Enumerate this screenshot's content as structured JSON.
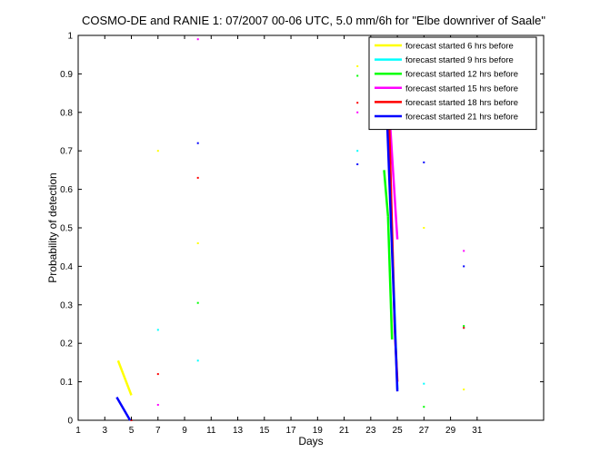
{
  "chart_data": {
    "type": "line",
    "title": "COSMO-DE and RANIE 1: 07/2007 00-06 UTC, 5.0 mm/6h for \"Elbe downriver of Saale\"",
    "xlabel": "Days",
    "ylabel": "Probability of detection",
    "xlim": [
      1,
      36
    ],
    "ylim": [
      0,
      1
    ],
    "xticks": [
      1,
      3,
      5,
      7,
      9,
      11,
      13,
      15,
      17,
      19,
      21,
      23,
      25,
      27,
      29,
      31
    ],
    "yticks": [
      0,
      0.1,
      0.2,
      0.3,
      0.4,
      0.5,
      0.6,
      0.7,
      0.8,
      0.9,
      1
    ],
    "ytick_labels": [
      "0",
      "0.1",
      "0.2",
      "0.3",
      "0.4",
      "0.5",
      "0.6",
      "0.7",
      "0.8",
      "0.9",
      "1"
    ],
    "grid": false,
    "legend_position": "top-right",
    "series": [
      {
        "name": "forecast started 6 hrs before",
        "color": "#ffff00",
        "segments": [
          [
            [
              4.0,
              0.155
            ],
            [
              5.0,
              0.065
            ]
          ],
          [
            [
              24.05,
              0.96
            ],
            [
              25.0,
              0.79
            ]
          ]
        ],
        "points": [
          [
            7.0,
            0.7
          ],
          [
            10.0,
            0.46
          ],
          [
            22.0,
            0.92
          ],
          [
            27.0,
            0.5
          ],
          [
            30.0,
            0.08
          ]
        ]
      },
      {
        "name": "forecast started 9 hrs before",
        "color": "#00ffff",
        "segments": [
          [
            [
              24.1,
              0.97
            ],
            [
              25.0,
              0.08
            ]
          ]
        ],
        "points": [
          [
            7.0,
            0.235
          ],
          [
            10.0,
            0.155
          ],
          [
            22.0,
            0.7
          ],
          [
            27.0,
            0.095
          ],
          [
            30.0,
            0.24
          ]
        ]
      },
      {
        "name": "forecast started 12 hrs before",
        "color": "#00ff00",
        "segments": [
          [
            [
              24.0,
              0.65
            ],
            [
              24.3,
              0.53
            ]
          ],
          [
            [
              24.3,
              0.53
            ],
            [
              24.6,
              0.21
            ]
          ]
        ],
        "points": [
          [
            10.0,
            0.305
          ],
          [
            22.0,
            0.895
          ],
          [
            27.0,
            0.035
          ],
          [
            30.0,
            0.245
          ]
        ]
      },
      {
        "name": "forecast started 15 hrs before",
        "color": "#ff00ff",
        "segments": [
          [
            [
              24.05,
              0.99
            ],
            [
              25.0,
              0.47
            ]
          ]
        ],
        "points": [
          [
            7.0,
            0.04
          ],
          [
            10.0,
            0.99
          ],
          [
            22.0,
            0.8
          ],
          [
            30.0,
            0.44
          ]
        ]
      },
      {
        "name": "forecast started 18 hrs before",
        "color": "#ff0000",
        "segments": [
          [
            [
              24.3,
              0.88
            ],
            [
              24.8,
              0.24
            ]
          ],
          [
            [
              24.8,
              0.24
            ],
            [
              25.0,
              0.1
            ]
          ]
        ],
        "points": [
          [
            7.0,
            0.12
          ],
          [
            10.0,
            0.63
          ],
          [
            22.0,
            0.825
          ],
          [
            27.0,
            0.76
          ],
          [
            30.0,
            0.24
          ],
          [
            5.0,
            0.0
          ]
        ]
      },
      {
        "name": "forecast started 21 hrs before",
        "color": "#0000ff",
        "segments": [
          [
            [
              3.9,
              0.06
            ],
            [
              4.9,
              0.0
            ]
          ],
          [
            [
              24.0,
              0.985
            ],
            [
              25.0,
              0.075
            ]
          ]
        ],
        "points": [
          [
            10.0,
            0.72
          ],
          [
            22.0,
            0.665
          ],
          [
            27.0,
            0.67
          ],
          [
            30.0,
            0.4
          ]
        ]
      }
    ]
  }
}
